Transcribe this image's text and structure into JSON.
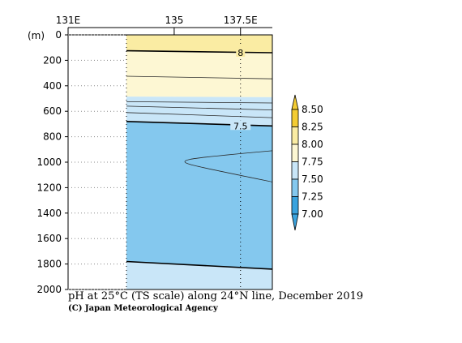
{
  "chart_data": {
    "type": "heatmap",
    "title": "pH at 25°C (TS scale) along 24°N line, December 2019",
    "credit": "(C) Japan Meteorological Agency",
    "ylabel": "(m)",
    "x_ticks": [
      {
        "value": 131,
        "label": "131E"
      },
      {
        "value": 135,
        "label": "135"
      },
      {
        "value": 137.5,
        "label": "137.5E"
      }
    ],
    "xlim": [
      131,
      138.7
    ],
    "ylim": [
      0,
      2000
    ],
    "y_ticks": [
      0,
      200,
      400,
      600,
      800,
      1000,
      1200,
      1400,
      1600,
      1800,
      2000
    ],
    "data_x_range": [
      133.2,
      138.7
    ],
    "station_columns": [
      133.2,
      137.5
    ],
    "colorbar": {
      "levels": [
        "8.50",
        "8.25",
        "8.00",
        "7.75",
        "7.50",
        "7.25",
        "7.00"
      ],
      "colors": [
        "#f3cc33",
        "#faeca3",
        "#fdf7d3",
        "#c9e6f8",
        "#84c8ee",
        "#3aa3de"
      ]
    },
    "fill_bands": [
      {
        "range": "8.00-8.25",
        "color": "#faeca3",
        "top": [
          [
            133.2,
            0
          ],
          [
            138.7,
            0
          ]
        ],
        "bottom": [
          [
            133.2,
            125
          ],
          [
            138.7,
            140
          ]
        ]
      },
      {
        "range": "7.75-8.00",
        "color": "#fdf7d3",
        "top": [
          [
            133.2,
            125
          ],
          [
            138.7,
            140
          ]
        ],
        "bottom": [
          [
            133.2,
            485
          ],
          [
            138.7,
            490
          ]
        ]
      },
      {
        "range": "7.50-7.75",
        "color": "#c9e6f8",
        "top": [
          [
            133.2,
            485
          ],
          [
            138.7,
            490
          ]
        ],
        "bottom": [
          [
            133.2,
            680
          ],
          [
            138.7,
            715
          ]
        ]
      },
      {
        "range": "7.25-7.50",
        "color": "#84c8ee",
        "top": [
          [
            133.2,
            680
          ],
          [
            138.7,
            715
          ]
        ],
        "bottom": [
          [
            133.2,
            1780
          ],
          [
            138.7,
            1840
          ]
        ]
      },
      {
        "range": "7.50-7.75",
        "color": "#c9e6f8",
        "top": [
          [
            133.2,
            1780
          ],
          [
            138.7,
            1840
          ]
        ],
        "bottom": [
          [
            133.2,
            2000
          ],
          [
            138.7,
            2000
          ]
        ]
      }
    ],
    "contours_major": [
      {
        "value": "8",
        "label_at": [
          137.5,
          140
        ],
        "points": [
          [
            133.2,
            125
          ],
          [
            138.7,
            140
          ]
        ]
      },
      {
        "value": "7.5",
        "label_at": [
          137.5,
          715
        ],
        "points": [
          [
            133.2,
            680
          ],
          [
            138.7,
            715
          ]
        ]
      },
      {
        "value": "",
        "label_at": null,
        "points": [
          [
            133.2,
            1780
          ],
          [
            138.7,
            1840
          ]
        ]
      }
    ],
    "contours_minor": [
      {
        "points": [
          [
            133.2,
            325
          ],
          [
            138.7,
            345
          ]
        ]
      },
      {
        "points": [
          [
            133.2,
            525
          ],
          [
            138.7,
            535
          ]
        ]
      },
      {
        "points": [
          [
            133.2,
            560
          ],
          [
            138.7,
            590
          ]
        ]
      },
      {
        "points": [
          [
            133.2,
            610
          ],
          [
            138.7,
            650
          ]
        ]
      },
      {
        "points": [
          [
            138.7,
            910
          ],
          [
            136.0,
            960
          ],
          [
            135.2,
            995
          ],
          [
            136.0,
            1040
          ],
          [
            138.7,
            1155
          ]
        ]
      }
    ]
  }
}
